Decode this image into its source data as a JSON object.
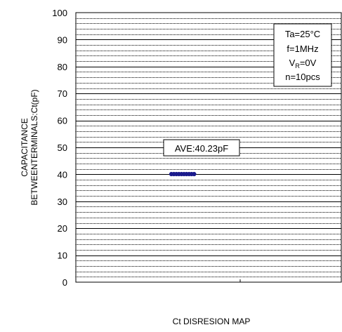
{
  "chart_data": {
    "type": "scatter",
    "title": "",
    "xlabel": "Ct DISRESION MAP",
    "ylabel_lines": [
      "CAPACITANCE",
      "BETWEENTERMINALS:Ct(pF)"
    ],
    "ylim": [
      0,
      100
    ],
    "y_ticks": [
      "0",
      "10",
      "20",
      "30",
      "40",
      "50",
      "60",
      "70",
      "80",
      "90",
      "100"
    ],
    "minor_gridlines": true,
    "grid": true,
    "conditions": {
      "ta": "Ta=25°C",
      "f": "f=1MHz",
      "vr_main": "V",
      "vr_sub": "R",
      "vr_val": "=0V",
      "n": "n=10pcs"
    },
    "annotation": "AVE:40.23pF",
    "points": [
      {
        "y": 40.23
      },
      {
        "y": 40.23
      },
      {
        "y": 40.23
      },
      {
        "y": 40.23
      },
      {
        "y": 40.23
      },
      {
        "y": 40.23
      },
      {
        "y": 40.23
      },
      {
        "y": 40.23
      },
      {
        "y": 40.23
      },
      {
        "y": 40.23
      }
    ],
    "point_color": "#1a1a8c"
  }
}
